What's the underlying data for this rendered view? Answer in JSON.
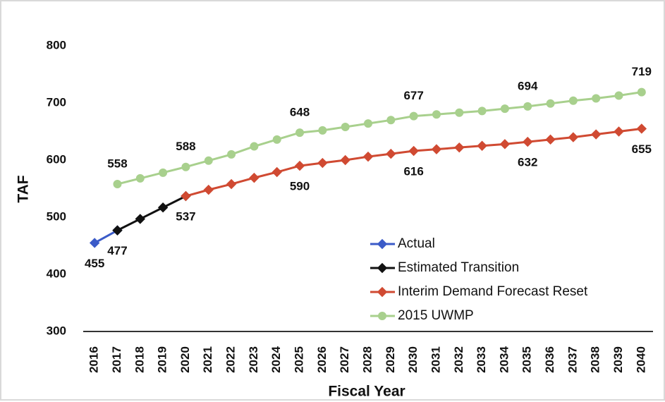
{
  "chart_data": {
    "type": "line",
    "x_label": "Fiscal Year",
    "y_label": "TAF",
    "categories": [
      "2016",
      "2017",
      "2018",
      "2019",
      "2020",
      "2021",
      "2022",
      "2023",
      "2024",
      "2025",
      "2026",
      "2027",
      "2028",
      "2029",
      "2030",
      "2031",
      "2032",
      "2033",
      "2034",
      "2035",
      "2036",
      "2037",
      "2038",
      "2039",
      "2040"
    ],
    "ylim": [
      300,
      800
    ],
    "yticks": [
      300,
      400,
      500,
      600,
      700,
      800
    ],
    "grid": false,
    "series": [
      {
        "name": "Actual",
        "color": "#3b5bc8",
        "marker": "diamond",
        "label_position": "below",
        "data_labels": [
          0,
          1
        ],
        "values": [
          455,
          477,
          null,
          null,
          null,
          null,
          null,
          null,
          null,
          null,
          null,
          null,
          null,
          null,
          null,
          null,
          null,
          null,
          null,
          null,
          null,
          null,
          null,
          null,
          null
        ]
      },
      {
        "name": "Estimated Transition",
        "color": "#111111",
        "marker": "diamond",
        "label_position": "below",
        "data_labels": [],
        "values": [
          null,
          477,
          497,
          517,
          537,
          null,
          null,
          null,
          null,
          null,
          null,
          null,
          null,
          null,
          null,
          null,
          null,
          null,
          null,
          null,
          null,
          null,
          null,
          null,
          null
        ]
      },
      {
        "name": "Interim Demand Forecast Reset",
        "color": "#d04a32",
        "marker": "diamond",
        "label_position": "below",
        "data_labels": [
          4,
          9,
          14,
          19,
          24
        ],
        "values": [
          null,
          null,
          null,
          null,
          537,
          548,
          558,
          569,
          579,
          590,
          595,
          600,
          606,
          611,
          616,
          619,
          622,
          625,
          628,
          632,
          636,
          640,
          645,
          650,
          655
        ]
      },
      {
        "name": "2015 UWMP",
        "color": "#a8d08d",
        "marker": "circle",
        "label_position": "above",
        "data_labels": [
          1,
          4,
          9,
          14,
          19,
          24
        ],
        "values": [
          null,
          558,
          568,
          578,
          588,
          599,
          610,
          624,
          636,
          648,
          652,
          658,
          664,
          670,
          677,
          680,
          683,
          686,
          690,
          694,
          699,
          704,
          708,
          713,
          719
        ]
      }
    ]
  }
}
